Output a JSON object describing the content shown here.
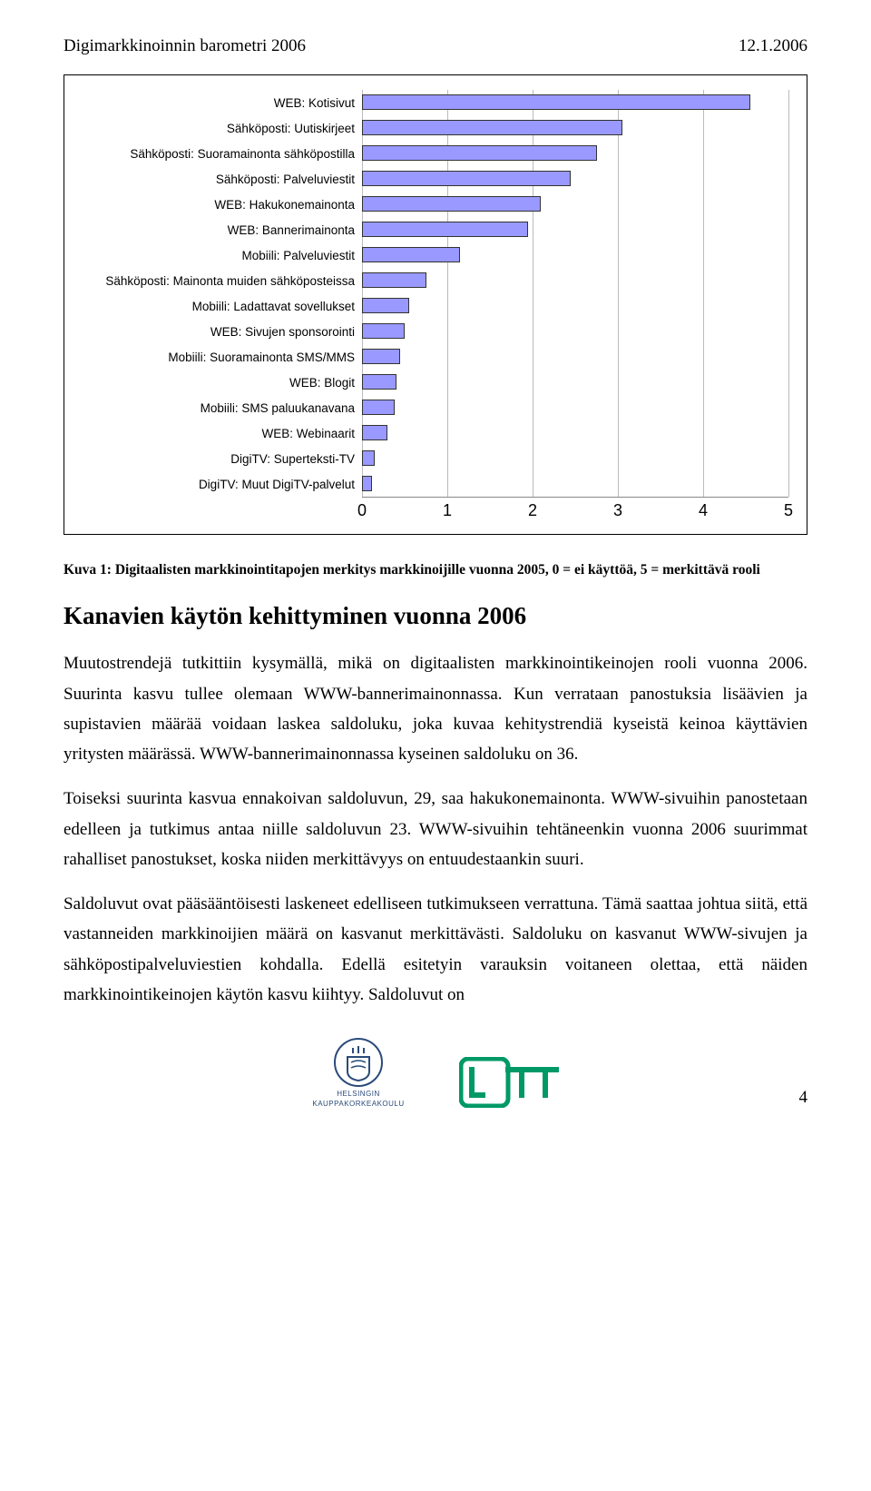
{
  "header": {
    "left": "Digimarkkinoinnin barometri 2006",
    "right": "12.1.2006"
  },
  "chart": {
    "type": "bar-horizontal",
    "bar_color": "#9999ff",
    "bar_border": "#333333",
    "grid_color": "#bbbbbb",
    "background": "#ffffff",
    "xmin": 0,
    "xmax": 5,
    "xtick_step": 1,
    "xticks": [
      "0",
      "1",
      "2",
      "3",
      "4",
      "5"
    ],
    "label_fontsize": 13.5,
    "tick_fontsize": 18,
    "rows": [
      {
        "label": "WEB: Kotisivut",
        "value": 4.55
      },
      {
        "label": "Sähköposti: Uutiskirjeet",
        "value": 3.05
      },
      {
        "label": "Sähköposti: Suoramainonta sähköpostilla",
        "value": 2.75
      },
      {
        "label": "Sähköposti: Palveluviestit",
        "value": 2.45
      },
      {
        "label": "WEB: Hakukonemainonta",
        "value": 2.1
      },
      {
        "label": "WEB: Bannerimainonta",
        "value": 1.95
      },
      {
        "label": "Mobiili: Palveluviestit",
        "value": 1.15
      },
      {
        "label": "Sähköposti: Mainonta muiden sähköposteissa",
        "value": 0.75
      },
      {
        "label": "Mobiili: Ladattavat sovellukset",
        "value": 0.55
      },
      {
        "label": "WEB: Sivujen sponsorointi",
        "value": 0.5
      },
      {
        "label": "Mobiili: Suoramainonta SMS/MMS",
        "value": 0.45
      },
      {
        "label": "WEB: Blogit",
        "value": 0.4
      },
      {
        "label": "Mobiili: SMS paluukanavana",
        "value": 0.38
      },
      {
        "label": "WEB: Webinaarit",
        "value": 0.3
      },
      {
        "label": "DigiTV: Superteksti-TV",
        "value": 0.15
      },
      {
        "label": "DigiTV: Muut DigiTV-palvelut",
        "value": 0.12
      }
    ]
  },
  "caption": "Kuva 1: Digitaalisten markkinointitapojen merkitys markkinoijille vuonna 2005, 0 = ei käyttöä, 5 = merkittävä rooli",
  "section_heading": "Kanavien käytön kehittyminen vuonna 2006",
  "paragraphs": [
    "Muutostrendejä tutkittiin kysymällä, mikä on digitaalisten markkinointikeinojen rooli vuonna 2006. Suurinta kasvu tullee olemaan WWW-bannerimainonnassa. Kun verrataan panostuksia lisäävien ja supistavien määrää voidaan laskea saldoluku, joka kuvaa kehitystrendiä kyseistä keinoa käyttävien yritysten määrässä. WWW-bannerimainonnassa kyseinen saldoluku on 36.",
    "Toiseksi suurinta kasvua ennakoivan saldoluvun, 29, saa hakukonemainonta. WWW-sivuihin panostetaan edelleen ja tutkimus antaa niille saldoluvun 23. WWW-sivuihin tehtäneenkin vuonna 2006 suurimmat rahalliset panostukset, koska niiden merkittävyys on entuudestaankin suuri.",
    "Saldoluvut ovat pääsääntöisesti laskeneet edelliseen tutkimukseen verrattuna. Tämä saattaa johtua siitä, että vastanneiden markkinoijien määrä on kasvanut merkittävästi. Saldoluku on kasvanut WWW-sivujen ja sähköpostipalveluviestien kohdalla. Edellä esitetyin varauksin voitaneen olettaa, että näiden markkinointikeinojen käytön kasvu kiihtyy. Saldoluvut on"
  ],
  "footer": {
    "logo1_text": "HELSINGIN KAUPPAKORKEAKOULU",
    "logo1_color": "#2a4a7a",
    "logo2_color": "#009966",
    "page_number": "4"
  }
}
